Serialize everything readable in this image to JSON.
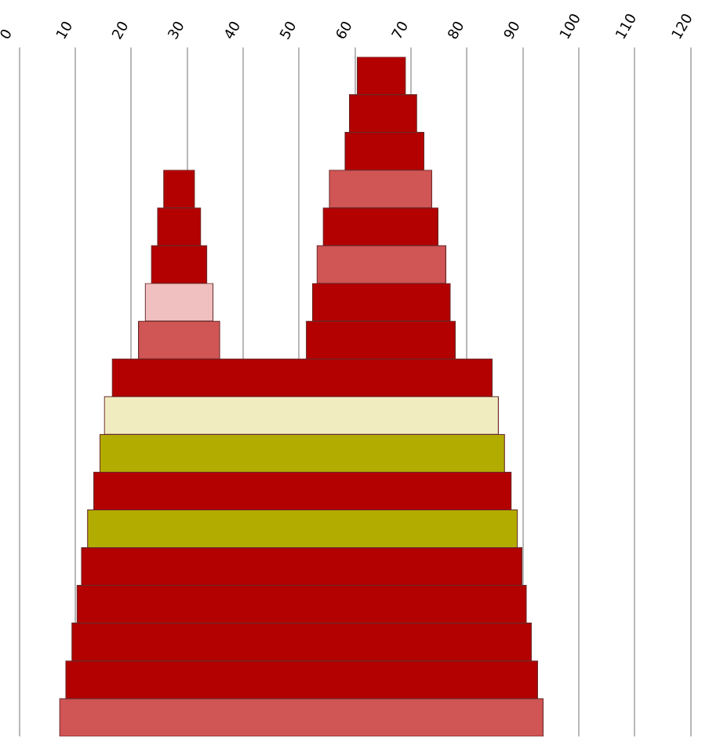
{
  "chart_data": {
    "type": "bar",
    "orientation": "horizontal",
    "categories": [
      null,
      null,
      null,
      null,
      null,
      null,
      null,
      null,
      null,
      null,
      null,
      null,
      null,
      null,
      null,
      null,
      null,
      null
    ],
    "series": [
      {
        "base": [
          60.4,
          59.0,
          58.2,
          55.4,
          54.3,
          53.2,
          52.4,
          51.3,
          16.6,
          15.2,
          14.4,
          13.3,
          12.2,
          11.1,
          10.3,
          9.4,
          8.3,
          7.2
        ],
        "values": [
          8.6,
          12.0,
          14.1,
          18.3,
          20.5,
          23.0,
          24.6,
          26.6,
          67.9,
          70.4,
          72.3,
          74.6,
          76.8,
          78.7,
          80.3,
          82.1,
          84.3,
          86.4
        ],
        "colors": [
          "#b30000",
          "#b30000",
          "#b30000",
          "#d05555",
          "#b30000",
          "#d05555",
          "#b30000",
          "#b30000",
          "#b30000",
          "#f0ecc0",
          "#b3ac00",
          "#b30000",
          "#b3ac00",
          "#b30000",
          "#b30000",
          "#b30000",
          "#b30000",
          "#d05555"
        ]
      },
      {
        "base": [
          null,
          null,
          null,
          25.8,
          24.7,
          23.6,
          22.5,
          21.3,
          null,
          null,
          null,
          null,
          null,
          null,
          null,
          null,
          null,
          null
        ],
        "values": [
          null,
          null,
          null,
          5.5,
          7.7,
          9.9,
          12.1,
          14.5,
          null,
          null,
          null,
          null,
          null,
          null,
          null,
          null,
          null,
          null
        ],
        "colors": [
          "#b30000",
          "#b30000",
          "#b30000",
          "#b30000",
          "#b30000",
          "#b30000",
          "#f0c0c0",
          "#d05555",
          "#b30000",
          "#b30000",
          "#b30000",
          "#b30000",
          "#b30000",
          "#b30000",
          "#b30000",
          "#b30000",
          "#b30000",
          "#b30000"
        ]
      }
    ],
    "xlim": [
      0,
      120
    ],
    "xticks": [
      0,
      10,
      20,
      30,
      40,
      50,
      60,
      70,
      80,
      90,
      100,
      110,
      120
    ],
    "grid": "x",
    "tick_labels": "x",
    "legend": false
  }
}
